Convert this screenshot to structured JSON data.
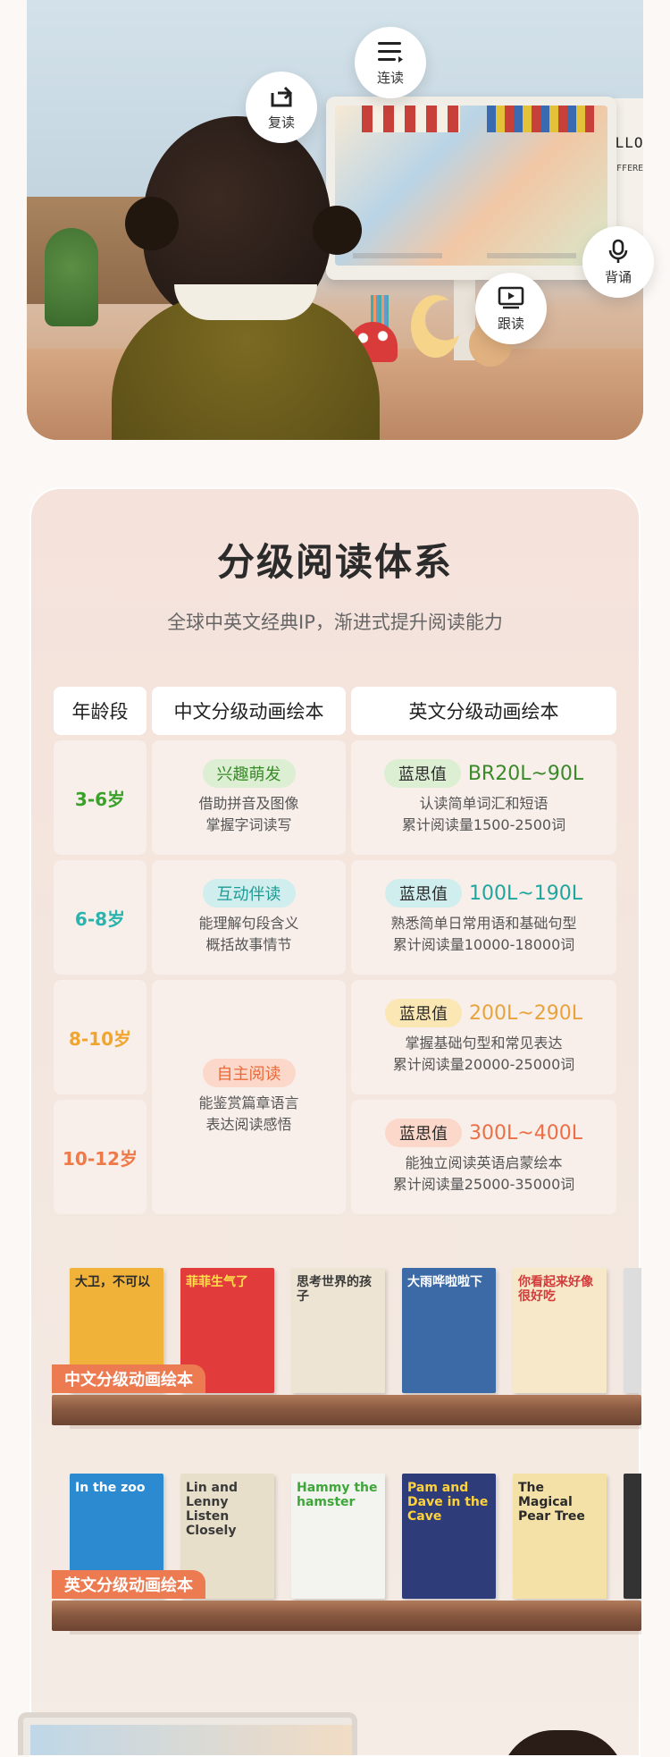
{
  "hero": {
    "poster_line1": "ELLO",
    "poster_line2": "E DIFFERE",
    "features": [
      {
        "label": "连读",
        "icon": "list-icon"
      },
      {
        "label": "复读",
        "icon": "repeat-icon"
      },
      {
        "label": "背诵",
        "icon": "microphone-icon"
      },
      {
        "label": "跟读",
        "icon": "play-icon"
      }
    ]
  },
  "section": {
    "title": "分级阅读体系",
    "subtitle": "全球中英文经典IP，渐进式提升阅读能力"
  },
  "table": {
    "headers": [
      "年龄段",
      "中文分级动画绘本",
      "英文分级动画绘本"
    ],
    "lexile_label": "蓝思值",
    "rows": [
      {
        "age": "3-6岁",
        "age_color": "#3aa12b",
        "cn_tag": "兴趣萌发",
        "cn_tag_bg": "#dcefd3",
        "cn_tag_color": "#3a8a2a",
        "cn_desc": [
          "借助拼音及图像",
          "掌握字词读写"
        ],
        "lex_bg": "#dcefd3",
        "lex_color": "#3a8a2a",
        "lex_value": "BR20L~90L",
        "en_desc": [
          "认读简单词汇和短语",
          "累计阅读量1500-2500词"
        ]
      },
      {
        "age": "6-8岁",
        "age_color": "#2bb3ad",
        "cn_tag": "互动伴读",
        "cn_tag_bg": "#cfeeed",
        "cn_tag_color": "#1f9a94",
        "cn_desc": [
          "能理解句段含义",
          "概括故事情节"
        ],
        "lex_bg": "#cfeeed",
        "lex_color": "#1fa69f",
        "lex_value": "100L~190L",
        "en_desc": [
          "熟悉简单日常用语和基础句型",
          "累计阅读量10000-18000词"
        ]
      },
      {
        "age": "8-10岁",
        "age_color": "#f0a531",
        "lex_bg": "#fbe7b3",
        "lex_color": "#e8a43b",
        "lex_value": "200L~290L",
        "en_desc": [
          "掌握基础句型和常见表达",
          "累计阅读量20000-25000词"
        ]
      },
      {
        "age": "10-12岁",
        "age_color": "#ee7a4a",
        "lex_bg": "#fbd8c9",
        "lex_color": "#ec7044",
        "lex_value": "300L~400L",
        "en_desc": [
          "能独立阅读英语启蒙绘本",
          "累计阅读量25000-35000词"
        ]
      }
    ],
    "merged": {
      "cn_tag": "自主阅读",
      "cn_tag_bg": "#fbd8c9",
      "cn_tag_color": "#e86a3a",
      "cn_desc": [
        "能鉴赏篇章语言",
        "表达阅读感悟"
      ]
    }
  },
  "shelves": [
    {
      "label": "中文分级动画绘本",
      "books": [
        {
          "title": "大卫，不可以",
          "bg": "#f1b23a",
          "fg": "#2a2a2a"
        },
        {
          "title": "菲菲生气了",
          "bg": "#e23b3b",
          "fg": "#ffe04a"
        },
        {
          "title": "思考世界的孩子",
          "bg": "#ede4d3",
          "fg": "#3a3a3a"
        },
        {
          "title": "大雨哗啦啦下",
          "bg": "#3c6aa6",
          "fg": "#ffffff"
        },
        {
          "title": "你看起来好像很好吃",
          "bg": "#f6e8c8",
          "fg": "#d23b3b"
        }
      ]
    },
    {
      "label": "英文分级动画绘本",
      "books": [
        {
          "title": "In the zoo",
          "bg": "#2c8bd0",
          "fg": "#ffffff"
        },
        {
          "title": "Lin and Lenny Listen Closely",
          "bg": "#e8dfca",
          "fg": "#3a3a3a"
        },
        {
          "title": "Hammy the hamster",
          "bg": "#f3f3ef",
          "fg": "#3fa63a"
        },
        {
          "title": "Pam and Dave in the Cave",
          "bg": "#2e3d7a",
          "fg": "#ffd23a"
        },
        {
          "title": "The Magical Pear Tree",
          "bg": "#f4e1a8",
          "fg": "#2a2a2a"
        }
      ]
    }
  ]
}
